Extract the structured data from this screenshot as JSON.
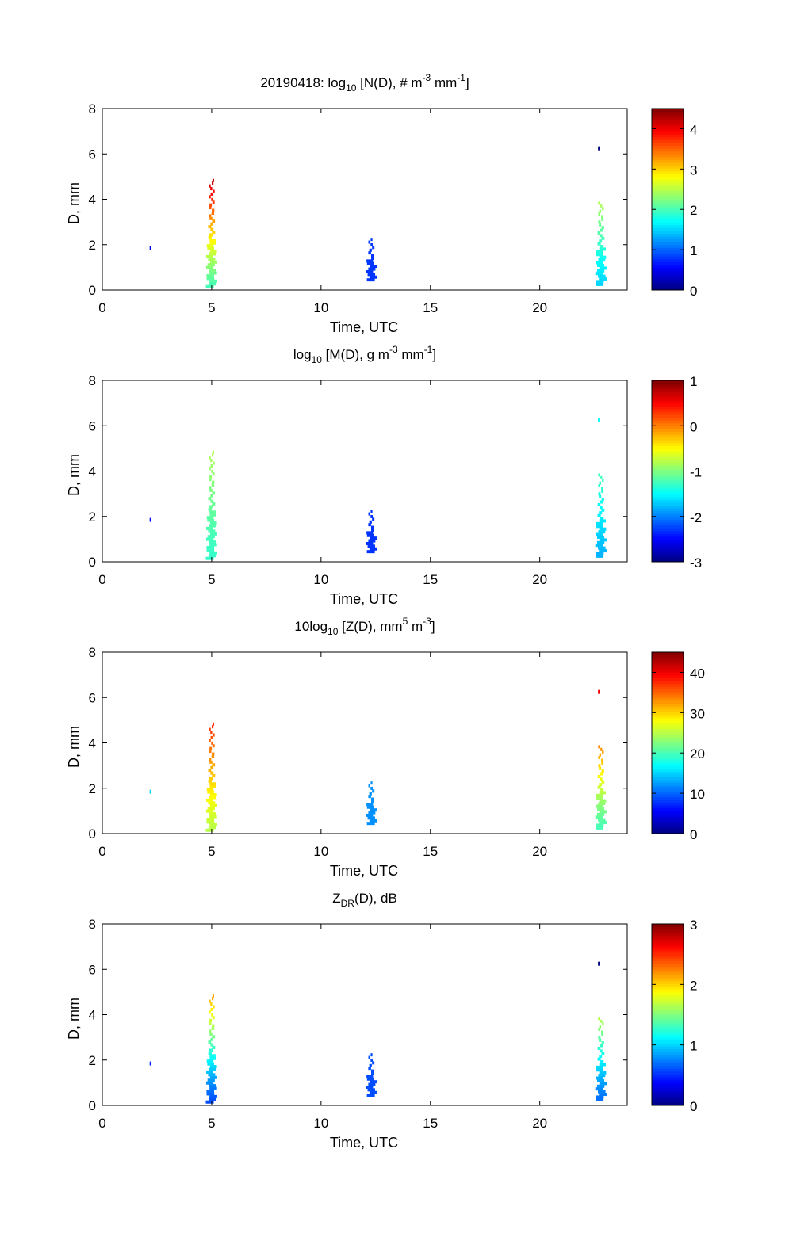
{
  "figure": {
    "date_label": "20190418:"
  },
  "chart_data": [
    {
      "type": "heatmap",
      "title_parts": [
        "20190418: log",
        "10",
        " [N(D), # m",
        "-3",
        " mm",
        "-1",
        "]"
      ],
      "xlabel": "Time, UTC",
      "ylabel": "D, mm",
      "xlim": [
        0,
        24
      ],
      "ylim": [
        0,
        8
      ],
      "xticks": [
        0,
        5,
        10,
        15,
        20
      ],
      "yticks": [
        0,
        2,
        4,
        6,
        8
      ],
      "colorbar": {
        "min": 0,
        "max": 4.5,
        "ticks": [
          0,
          1,
          2,
          3,
          4
        ]
      },
      "clusters": [
        {
          "time": 2.2,
          "d_range": [
            1.8,
            1.9
          ],
          "value": 0.5
        },
        {
          "time": 5.0,
          "d_range": [
            0.1,
            4.9
          ],
          "value": 2.0,
          "peak": 4.3
        },
        {
          "time": 12.3,
          "d_range": [
            0.4,
            2.3
          ],
          "value": 0.8
        },
        {
          "time": 22.8,
          "d_range": [
            0.2,
            3.9
          ],
          "value": 1.5,
          "peak": 2.5
        },
        {
          "time": 22.7,
          "d_range": [
            6.2,
            6.3
          ],
          "value": 0.0
        }
      ]
    },
    {
      "type": "heatmap",
      "title_parts": [
        "log",
        "10",
        " [M(D), g m",
        "-3",
        " mm",
        "-1",
        "]"
      ],
      "xlabel": "Time, UTC",
      "ylabel": "D, mm",
      "xlim": [
        0,
        24
      ],
      "ylim": [
        0,
        8
      ],
      "xticks": [
        0,
        5,
        10,
        15,
        20
      ],
      "yticks": [
        0,
        2,
        4,
        6,
        8
      ],
      "colorbar": {
        "min": -3,
        "max": 1,
        "ticks": [
          -3,
          -2,
          -1,
          0,
          1
        ]
      },
      "clusters": [
        {
          "time": 2.2,
          "d_range": [
            1.8,
            1.9
          ],
          "value": -2.5
        },
        {
          "time": 5.0,
          "d_range": [
            0.1,
            4.9
          ],
          "value": -1.3,
          "peak": -0.8
        },
        {
          "time": 12.3,
          "d_range": [
            0.4,
            2.3
          ],
          "value": -2.3
        },
        {
          "time": 22.8,
          "d_range": [
            0.2,
            3.9
          ],
          "value": -1.8,
          "peak": -1.2
        },
        {
          "time": 22.7,
          "d_range": [
            6.2,
            6.3
          ],
          "value": -1.5
        }
      ]
    },
    {
      "type": "heatmap",
      "title_parts": [
        "10log",
        "10",
        " [Z(D),  mm",
        "5",
        " m",
        "-3",
        "]"
      ],
      "xlabel": "Time, UTC",
      "ylabel": "D, mm",
      "xlim": [
        0,
        24
      ],
      "ylim": [
        0,
        8
      ],
      "xticks": [
        0,
        5,
        10,
        15,
        20
      ],
      "yticks": [
        0,
        2,
        4,
        6,
        8
      ],
      "colorbar": {
        "min": 0,
        "max": 45,
        "ticks": [
          0,
          10,
          20,
          30,
          40
        ]
      },
      "clusters": [
        {
          "time": 2.2,
          "d_range": [
            1.8,
            1.9
          ],
          "value": 15
        },
        {
          "time": 5.0,
          "d_range": [
            0.1,
            4.9
          ],
          "value": 25,
          "peak": 38
        },
        {
          "time": 12.3,
          "d_range": [
            0.4,
            2.3
          ],
          "value": 12
        },
        {
          "time": 22.8,
          "d_range": [
            0.2,
            3.9
          ],
          "value": 20,
          "peak": 34
        },
        {
          "time": 22.7,
          "d_range": [
            6.2,
            6.3
          ],
          "value": 40
        }
      ]
    },
    {
      "type": "heatmap",
      "title_parts": [
        "Z",
        "DR",
        "(D), dB"
      ],
      "title_sub_index": 1,
      "xlabel": "Time, UTC",
      "ylabel": "D, mm",
      "xlim": [
        0,
        24
      ],
      "ylim": [
        0,
        8
      ],
      "xticks": [
        0,
        5,
        10,
        15,
        20
      ],
      "yticks": [
        0,
        2,
        4,
        6,
        8
      ],
      "colorbar": {
        "min": 0,
        "max": 3,
        "ticks": [
          0,
          1,
          2,
          3
        ]
      },
      "clusters": [
        {
          "time": 2.2,
          "d_range": [
            1.8,
            1.9
          ],
          "value": 0.5
        },
        {
          "time": 5.0,
          "d_range": [
            0.1,
            4.9
          ],
          "value": 0.6,
          "peak": 2.2
        },
        {
          "time": 12.3,
          "d_range": [
            0.4,
            2.3
          ],
          "value": 0.6
        },
        {
          "time": 22.8,
          "d_range": [
            0.2,
            3.9
          ],
          "value": 0.7,
          "peak": 1.7
        },
        {
          "time": 22.7,
          "d_range": [
            6.2,
            6.3
          ],
          "value": 0.0
        }
      ]
    }
  ]
}
